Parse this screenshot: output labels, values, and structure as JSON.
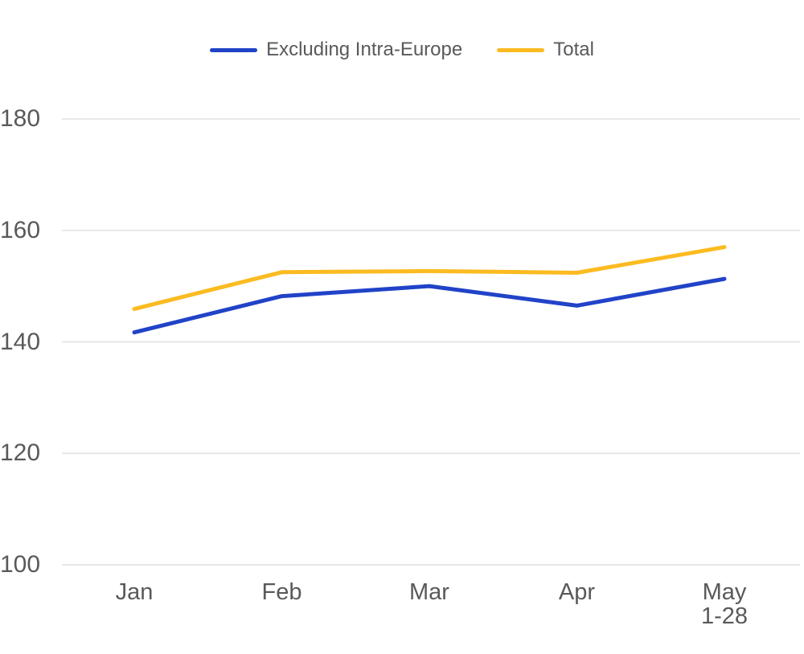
{
  "chart_data": {
    "type": "line",
    "categories": [
      "Jan",
      "Feb",
      "Mar",
      "Apr",
      "May\n1-28"
    ],
    "series": [
      {
        "name": "Excluding Intra-Europe",
        "color": "#2143c8",
        "values": [
          141.7,
          148.2,
          150.0,
          146.5,
          151.3
        ]
      },
      {
        "name": "Total",
        "color": "#fbbb21",
        "values": [
          145.9,
          152.5,
          152.7,
          152.4,
          157.0
        ]
      }
    ],
    "yticks": [
      100,
      120,
      140,
      160,
      180
    ],
    "ylim": [
      100,
      180
    ],
    "grid": true,
    "legend_position": "top-center",
    "title": "",
    "xlabel": "",
    "ylabel": ""
  },
  "colors": {
    "grid": "#e7e7e7",
    "axis_text": "#595959",
    "legend_text": "#595959",
    "background": "#ffffff"
  }
}
